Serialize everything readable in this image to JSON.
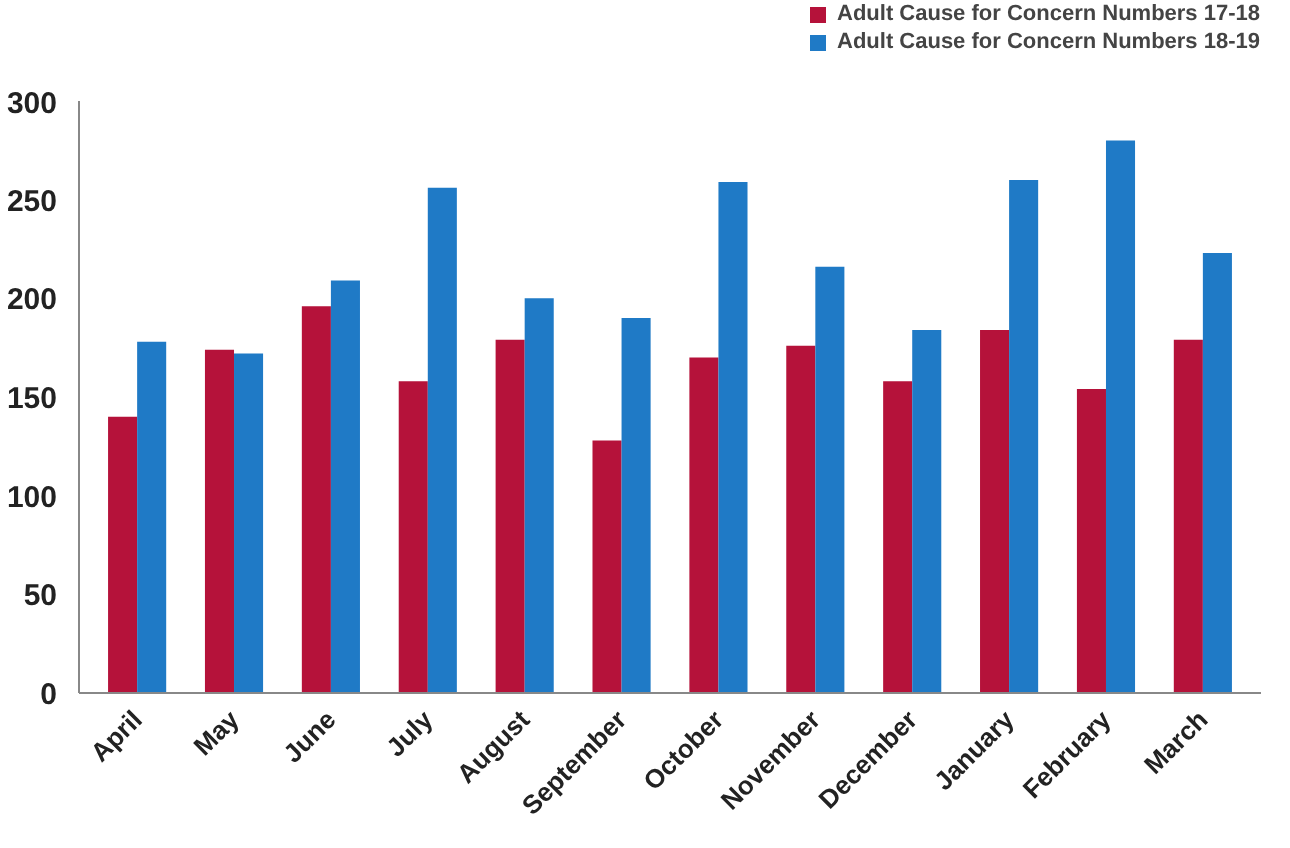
{
  "chart_data": {
    "type": "bar",
    "categories": [
      "April",
      "May",
      "June",
      "July",
      "August",
      "September",
      "October",
      "November",
      "December",
      "January",
      "February",
      "March"
    ],
    "series": [
      {
        "name": "Adult Cause for Concern Numbers 17-18",
        "color": "#b5123a",
        "values": [
          140,
          174,
          196,
          158,
          179,
          128,
          170,
          176,
          158,
          184,
          154,
          179
        ]
      },
      {
        "name": "Adult Cause for Concern Numbers 18-19",
        "color": "#1f7ac6",
        "values": [
          178,
          172,
          209,
          256,
          200,
          190,
          259,
          216,
          184,
          260,
          280,
          223
        ]
      }
    ],
    "ylim": [
      0,
      300
    ],
    "yticks": [
      0,
      50,
      100,
      150,
      200,
      250,
      300
    ],
    "grid": false,
    "legend": "top right"
  }
}
